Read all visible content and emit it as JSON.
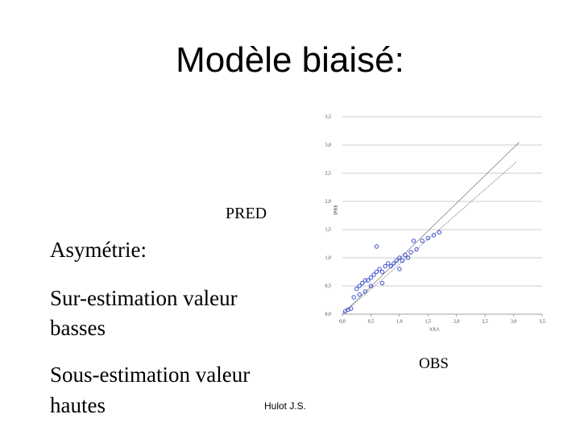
{
  "title": "Modèle biaisé:",
  "pred_label": "PRED",
  "obs_label": "OBS",
  "bullets": [
    "Asymétrie:",
    "Sur-estimation valeur",
    "basses",
    "Sous-estimation valeur",
    "hautes"
  ],
  "author": "Hulot J.S.",
  "chart_data": {
    "type": "scatter",
    "x_label": "AXA",
    "y_label": "IPRE",
    "color": "#3a4fd0",
    "xlim": [
      0,
      3.5
    ],
    "ylim": [
      0,
      3.5
    ],
    "xticks": [
      {
        "value": 0,
        "label": "0,0"
      },
      {
        "value": 0.5,
        "label": "0,5"
      },
      {
        "value": 1,
        "label": "1,0"
      },
      {
        "value": 1.5,
        "label": "1,5"
      },
      {
        "value": 2,
        "label": "2,0"
      },
      {
        "value": 2.5,
        "label": "2,5"
      },
      {
        "value": 3,
        "label": "3,0"
      },
      {
        "value": 3.5,
        "label": "3,5"
      }
    ],
    "yticks": [
      {
        "value": 0,
        "label": "0,0"
      },
      {
        "value": 0.5,
        "label": "0,5"
      },
      {
        "value": 1,
        "label": "1,0"
      },
      {
        "value": 1.5,
        "label": "1,5"
      },
      {
        "value": 2,
        "label": "2,0"
      },
      {
        "value": 2.5,
        "label": "2,5"
      },
      {
        "value": 3,
        "label": "3,0"
      },
      {
        "value": 3.5,
        "label": "3,5"
      }
    ],
    "x": [
      0.05,
      0.1,
      0.15,
      0.2,
      0.25,
      0.3,
      0.35,
      0.4,
      0.45,
      0.5,
      0.5,
      0.55,
      0.6,
      0.65,
      0.7,
      0.75,
      0.8,
      0.85,
      0.9,
      0.95,
      1.0,
      1.05,
      1.1,
      1.15,
      1.2,
      1.3,
      1.4,
      1.5,
      1.6,
      1.7,
      0.6,
      0.4,
      0.7,
      1.0,
      1.25,
      0.3
    ],
    "y": [
      0.05,
      0.08,
      0.1,
      0.3,
      0.45,
      0.5,
      0.55,
      0.6,
      0.6,
      0.65,
      0.5,
      0.7,
      0.75,
      0.8,
      0.75,
      0.85,
      0.9,
      0.85,
      0.9,
      0.95,
      1.0,
      0.95,
      1.05,
      1.0,
      1.1,
      1.15,
      1.3,
      1.35,
      1.4,
      1.45,
      1.2,
      0.4,
      0.55,
      0.8,
      1.3,
      0.35
    ],
    "fit_lines": [
      {
        "x": [
          0,
          3.1
        ],
        "y": [
          0,
          3.05
        ]
      },
      {
        "x": [
          0,
          3.05
        ],
        "y": [
          0,
          2.7
        ]
      }
    ]
  }
}
